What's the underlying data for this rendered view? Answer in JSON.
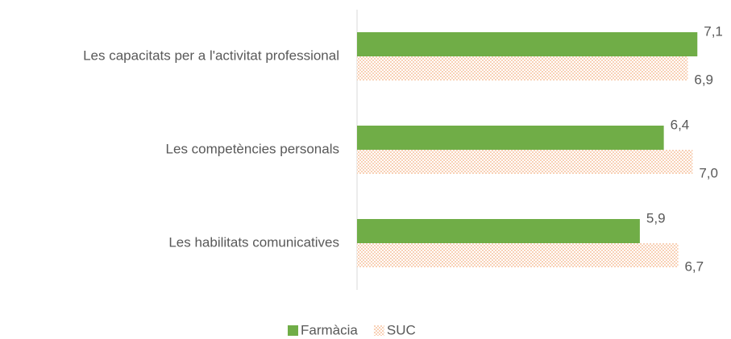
{
  "chart_data": {
    "type": "hbar",
    "categories": [
      "Les capacitats per a l'activitat professional",
      "Les competències personals",
      "Les habilitats comunicatives"
    ],
    "series": [
      {
        "name": "Farmàcia",
        "color": "#70ad47",
        "pattern": "solid",
        "values": [
          7.1,
          6.4,
          5.9
        ],
        "value_labels": [
          "7,1",
          "6,4",
          "5,9"
        ]
      },
      {
        "name": "SUC",
        "color": "#f4b183",
        "pattern": "dots",
        "values": [
          6.9,
          7.0,
          6.7
        ],
        "value_labels": [
          "6,9",
          "7,0",
          "6,7"
        ]
      }
    ],
    "xlim": [
      0,
      7.6
    ],
    "legend": "bottom"
  }
}
